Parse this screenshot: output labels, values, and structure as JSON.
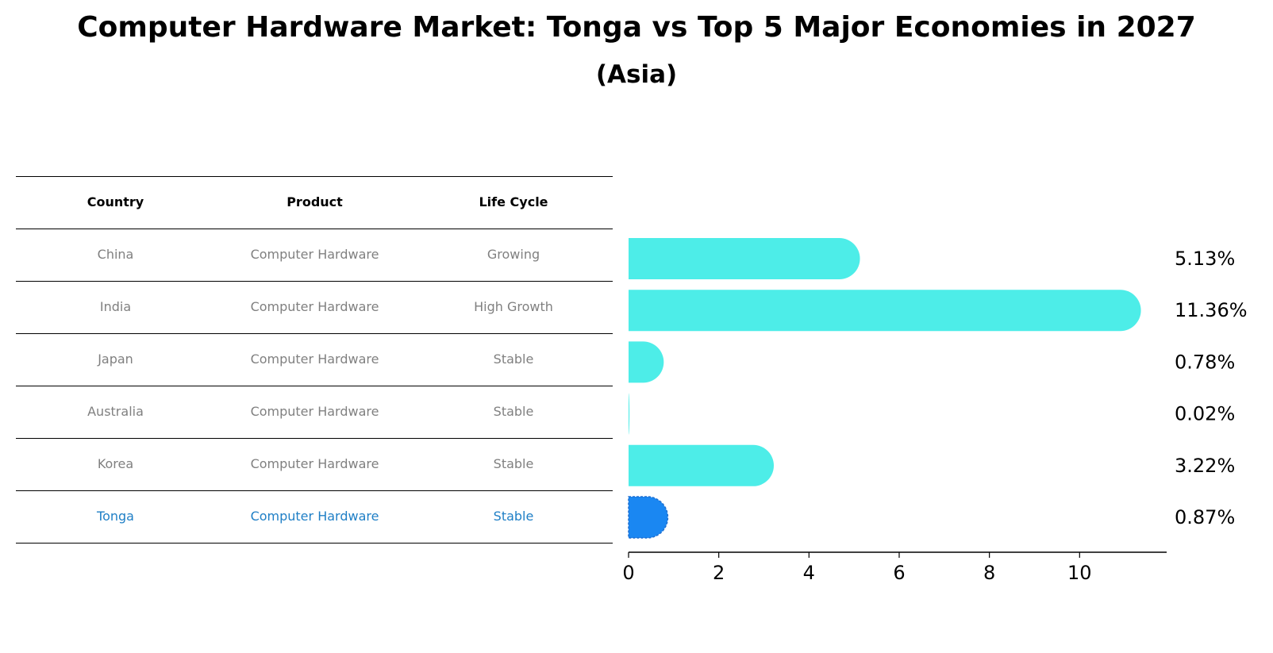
{
  "header": {
    "title": "Computer Hardware Market: Tonga vs Top 5 Major Economies in 2027",
    "subtitle": "(Asia)"
  },
  "table": {
    "columns": [
      "Country",
      "Product",
      "Life Cycle"
    ],
    "rows": [
      {
        "country": "China",
        "product": "Computer Hardware",
        "life_cycle": "Growing"
      },
      {
        "country": "India",
        "product": "Computer Hardware",
        "life_cycle": "High Growth"
      },
      {
        "country": "Japan",
        "product": "Computer Hardware",
        "life_cycle": "Stable"
      },
      {
        "country": "Australia",
        "product": "Computer Hardware",
        "life_cycle": "Stable"
      },
      {
        "country": "Korea",
        "product": "Computer Hardware",
        "life_cycle": "Stable"
      },
      {
        "country": "Tonga",
        "product": "Computer Hardware",
        "life_cycle": "Stable"
      }
    ],
    "highlight_row": 5,
    "text_color": "#808080",
    "highlight_text_color": "#1f7fc6"
  },
  "chart_data": {
    "type": "bar",
    "orientation": "horizontal",
    "title": "Computer Hardware Market: Tonga vs Top 5 Major Economies in 2027",
    "subtitle": "(Asia)",
    "categories": [
      "China",
      "India",
      "Japan",
      "Australia",
      "Korea",
      "Tonga"
    ],
    "values": [
      5.13,
      11.36,
      0.78,
      0.02,
      3.22,
      0.87
    ],
    "value_labels": [
      "5.13%",
      "11.36%",
      "0.78%",
      "0.02%",
      "3.22%",
      "0.87%"
    ],
    "xlim": [
      0,
      11.93
    ],
    "xticks": [
      0,
      2,
      4,
      6,
      8,
      10
    ],
    "xtick_labels": [
      "0",
      "2",
      "4",
      "6",
      "8",
      "10"
    ],
    "xlabel": "",
    "ylabel": "",
    "grid": false,
    "highlight_index": 5,
    "bar_color": "#4dede8",
    "highlight_color": "#1a87f2"
  }
}
